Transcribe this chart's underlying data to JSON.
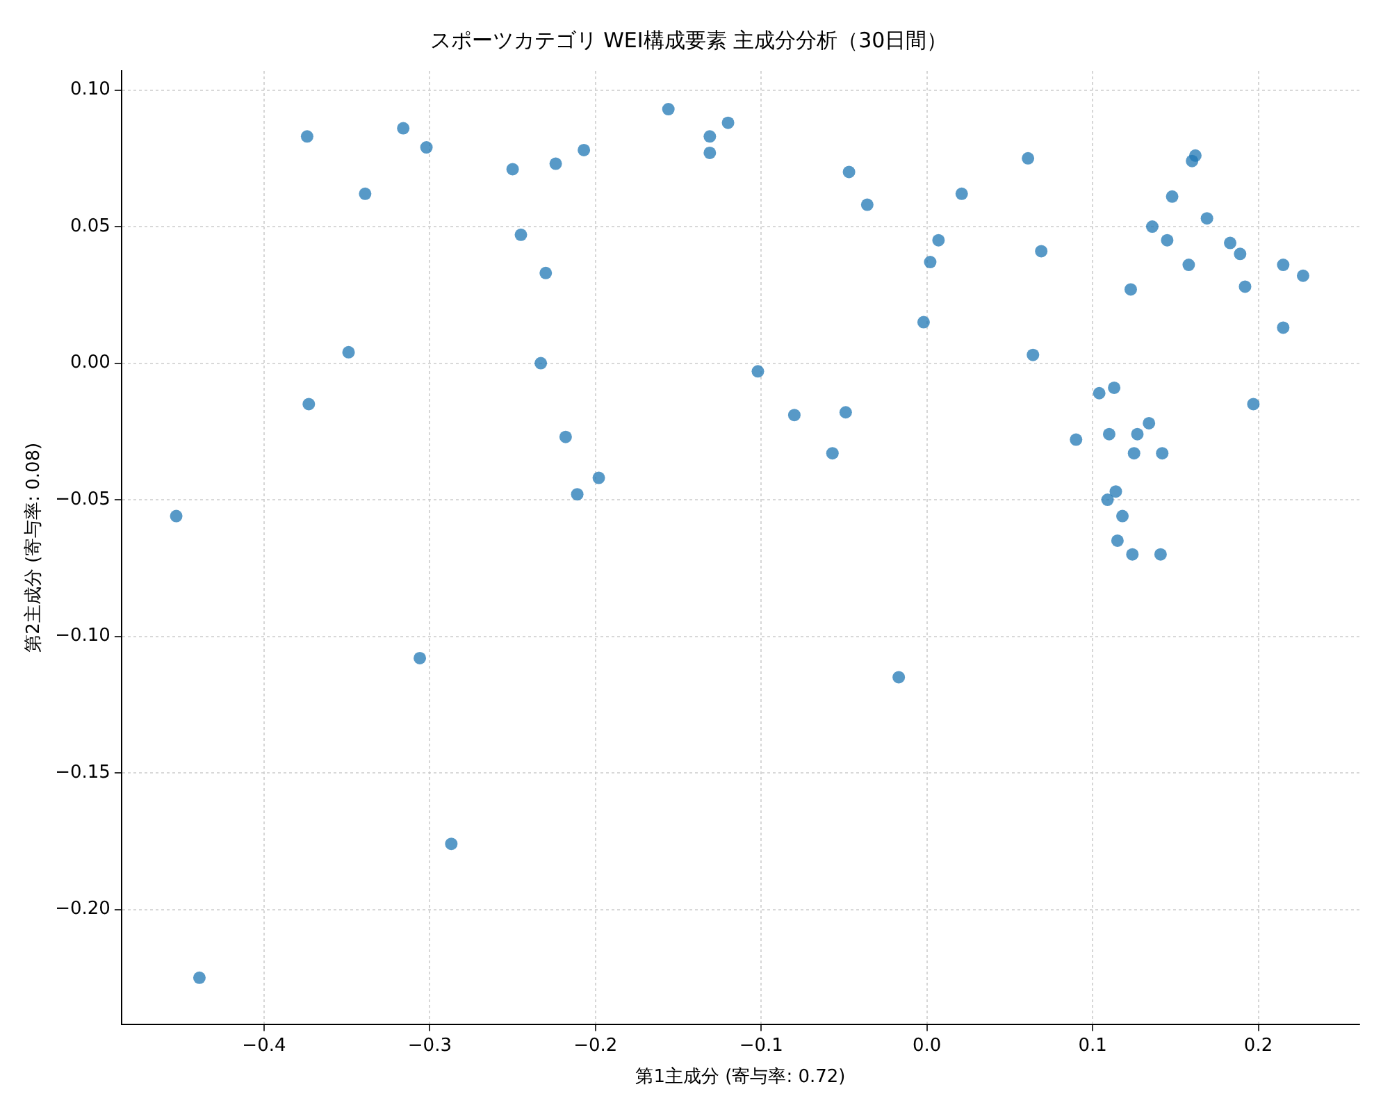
{
  "chart_data": {
    "type": "scatter",
    "title": "スポーツカテゴリ WEI構成要素 主成分分析（30日間）",
    "xlabel": "第1主成分 (寄与率: 0.72)",
    "ylabel": "第2主成分 (寄与率: 0.08)",
    "xlim": [
      -0.486,
      0.261
    ],
    "ylim": [
      -0.242,
      0.107
    ],
    "xticks": [
      {
        "value": -0.4,
        "label": "−0.4"
      },
      {
        "value": -0.3,
        "label": "−0.3"
      },
      {
        "value": -0.2,
        "label": "−0.2"
      },
      {
        "value": -0.1,
        "label": "−0.1"
      },
      {
        "value": 0,
        "label": "0.0"
      },
      0.1,
      0.2
    ],
    "yticks": [
      {
        "value": -0.2,
        "label": "−0.20"
      },
      {
        "value": -0.15,
        "label": "−0.15"
      },
      {
        "value": -0.1,
        "label": "−0.10"
      },
      {
        "value": -0.05,
        "label": "−0.05"
      },
      {
        "value": 0,
        "label": "0.00"
      },
      0.05,
      {
        "value": 0.1,
        "label": "0.10"
      }
    ],
    "grid": true,
    "legend": false,
    "marker": "circle",
    "series": [
      {
        "color": "#1f77b4",
        "x": [
          -0.453,
          -0.439,
          -0.374,
          -0.373,
          -0.349,
          -0.339,
          -0.316,
          -0.302,
          -0.306,
          -0.287,
          -0.25,
          -0.245,
          -0.23,
          -0.233,
          -0.224,
          -0.218,
          -0.211,
          -0.207,
          -0.198,
          -0.156,
          -0.131,
          -0.131,
          -0.12,
          -0.102,
          -0.08,
          -0.049,
          -0.057,
          -0.047,
          -0.036,
          -0.017,
          -0.002,
          0.002,
          0.007,
          0.021,
          0.061,
          0.064,
          0.069,
          0.09,
          0.104,
          0.109,
          0.11,
          0.113,
          0.114,
          0.115,
          0.118,
          0.123,
          0.124,
          0.125,
          0.127,
          0.134,
          0.136,
          0.141,
          0.142,
          0.145,
          0.148,
          0.158,
          0.16,
          0.162,
          0.169,
          0.183,
          0.189,
          0.192,
          0.197,
          0.215,
          0.215,
          0.227
        ],
        "values": [
          -0.056,
          -0.225,
          0.083,
          -0.015,
          0.004,
          0.062,
          0.086,
          0.079,
          -0.108,
          -0.176,
          0.071,
          0.047,
          0.033,
          0.0,
          0.073,
          -0.027,
          -0.048,
          0.078,
          -0.042,
          0.093,
          0.083,
          0.077,
          0.088,
          -0.003,
          -0.019,
          -0.018,
          -0.033,
          0.07,
          0.058,
          -0.115,
          0.015,
          0.037,
          0.045,
          0.062,
          0.075,
          0.003,
          0.041,
          -0.028,
          -0.011,
          -0.05,
          -0.026,
          -0.009,
          -0.047,
          -0.065,
          -0.056,
          0.027,
          -0.07,
          -0.033,
          -0.026,
          -0.022,
          0.05,
          -0.07,
          -0.033,
          0.045,
          0.061,
          0.036,
          0.074,
          0.076,
          0.053,
          0.044,
          0.04,
          0.028,
          -0.015,
          0.036,
          0.013,
          0.032
        ]
      }
    ]
  }
}
